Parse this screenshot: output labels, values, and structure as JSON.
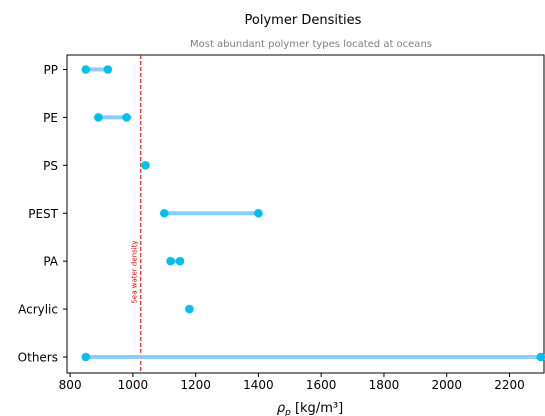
{
  "chart_data": {
    "type": "dumbbell",
    "title": "Polymer Densities",
    "subtitle": "Most abundant polymer types located at oceans",
    "xlabel_main": "ρ",
    "xlabel_sub": "p",
    "xlabel_rest": " [kg/m³]",
    "xlim": [
      790,
      2310
    ],
    "xticks": [
      800,
      1000,
      1200,
      1400,
      1600,
      1800,
      2000,
      2200
    ],
    "grid": false,
    "categories": [
      "PP",
      "PE",
      "PS",
      "PEST",
      "PA",
      "Acrylic",
      "Others"
    ],
    "ranges": [
      {
        "label": "PP",
        "min": 850,
        "max": 920
      },
      {
        "label": "PE",
        "min": 890,
        "max": 980
      },
      {
        "label": "PS",
        "min": 1040,
        "max": 1040
      },
      {
        "label": "PEST",
        "min": 1100,
        "max": 1400
      },
      {
        "label": "PA",
        "min": 1120,
        "max": 1150
      },
      {
        "label": "Acrylic",
        "min": 1180,
        "max": 1180
      },
      {
        "label": "Others",
        "min": 850,
        "max": 2300
      }
    ],
    "reference_line": {
      "value": 1025,
      "label": "Sea water density",
      "color": "#e00000"
    },
    "colors": {
      "point": "#00bfef",
      "range_line": "#87cefa"
    }
  }
}
